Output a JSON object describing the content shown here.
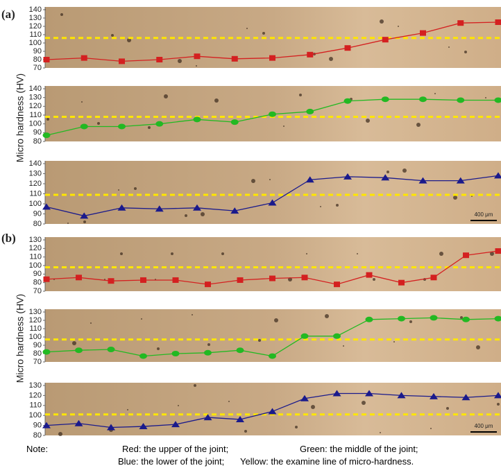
{
  "panels": [
    {
      "label": "(a)",
      "ylabel": "Micro hardness (HV)"
    },
    {
      "label": "(b)",
      "ylabel": "Micro hardness (HV)"
    }
  ],
  "note": {
    "title": "Note:",
    "red": "Red: the upper of the joint;",
    "green": "Green: the middle of the joint;",
    "blue": "Blue: the lower of the joint;",
    "yellow": "Yellow: the examine line of micro-hardness."
  },
  "chart_data": [
    {
      "type": "line",
      "ylim": [
        70,
        140
      ],
      "yticks": [
        70,
        80,
        90,
        100,
        110,
        120,
        130,
        140
      ],
      "examine_line": 106,
      "examine_color": "#ffe600",
      "categories": [
        null,
        null,
        null,
        null,
        null,
        null,
        null,
        null,
        null,
        null,
        null,
        null,
        null
      ],
      "series": [
        {
          "color": "#d42020",
          "marker": "square",
          "values": [
            80,
            82,
            78,
            80,
            84,
            81,
            82,
            86,
            94,
            104,
            112,
            124,
            125
          ]
        }
      ]
    },
    {
      "type": "line",
      "ylim": [
        80,
        140
      ],
      "yticks": [
        80,
        90,
        100,
        110,
        120,
        130,
        140
      ],
      "examine_line": 108,
      "examine_color": "#ffe600",
      "categories": [
        null,
        null,
        null,
        null,
        null,
        null,
        null,
        null,
        null,
        null,
        null,
        null,
        null
      ],
      "series": [
        {
          "color": "#22b922",
          "marker": "circle",
          "values": [
            87,
            97,
            97,
            100,
            105,
            102,
            111,
            114,
            126,
            128,
            128,
            127,
            127
          ]
        }
      ]
    },
    {
      "type": "line",
      "ylim": [
        80,
        140
      ],
      "yticks": [
        80,
        90,
        100,
        110,
        120,
        130,
        140
      ],
      "examine_line": 109,
      "examine_color": "#ffe600",
      "annotation": "400 μm",
      "categories": [
        null,
        null,
        null,
        null,
        null,
        null,
        null,
        null,
        null,
        null,
        null,
        null,
        null
      ],
      "series": [
        {
          "color": "#1a1a8c",
          "marker": "triangle",
          "values": [
            97,
            88,
            96,
            95,
            96,
            93,
            101,
            124,
            127,
            126,
            123,
            123,
            128
          ]
        }
      ]
    },
    {
      "type": "line",
      "ylim": [
        70,
        130
      ],
      "yticks": [
        70,
        80,
        90,
        100,
        110,
        120,
        130
      ],
      "examine_line": 98,
      "examine_color": "#ffe600",
      "categories": [
        null,
        null,
        null,
        null,
        null,
        null,
        null,
        null,
        null,
        null,
        null,
        null,
        null,
        null,
        null
      ],
      "series": [
        {
          "color": "#d42020",
          "marker": "square",
          "values": [
            84,
            86,
            82,
            83,
            83,
            78,
            83,
            85,
            86,
            78,
            89,
            80,
            86,
            112,
            117
          ]
        }
      ]
    },
    {
      "type": "line",
      "ylim": [
        70,
        130
      ],
      "yticks": [
        70,
        80,
        90,
        100,
        110,
        120,
        130
      ],
      "examine_line": 97,
      "examine_color": "#ffe600",
      "categories": [
        null,
        null,
        null,
        null,
        null,
        null,
        null,
        null,
        null,
        null,
        null,
        null,
        null,
        null,
        null
      ],
      "series": [
        {
          "color": "#22b922",
          "marker": "circle",
          "values": [
            82,
            84,
            85,
            77,
            80,
            81,
            84,
            77,
            101,
            101,
            121,
            122,
            123,
            121,
            122
          ]
        }
      ]
    },
    {
      "type": "line",
      "ylim": [
        80,
        130
      ],
      "yticks": [
        80,
        90,
        100,
        110,
        120,
        130
      ],
      "examine_line": 101,
      "examine_color": "#ffe600",
      "annotation": "400 μm",
      "categories": [
        null,
        null,
        null,
        null,
        null,
        null,
        null,
        null,
        null,
        null,
        null,
        null,
        null,
        null,
        null
      ],
      "series": [
        {
          "color": "#1a1a8c",
          "marker": "triangle",
          "values": [
            90,
            92,
            88,
            89,
            91,
            98,
            96,
            104,
            117,
            122,
            122,
            120,
            119,
            118,
            120
          ]
        }
      ]
    }
  ]
}
